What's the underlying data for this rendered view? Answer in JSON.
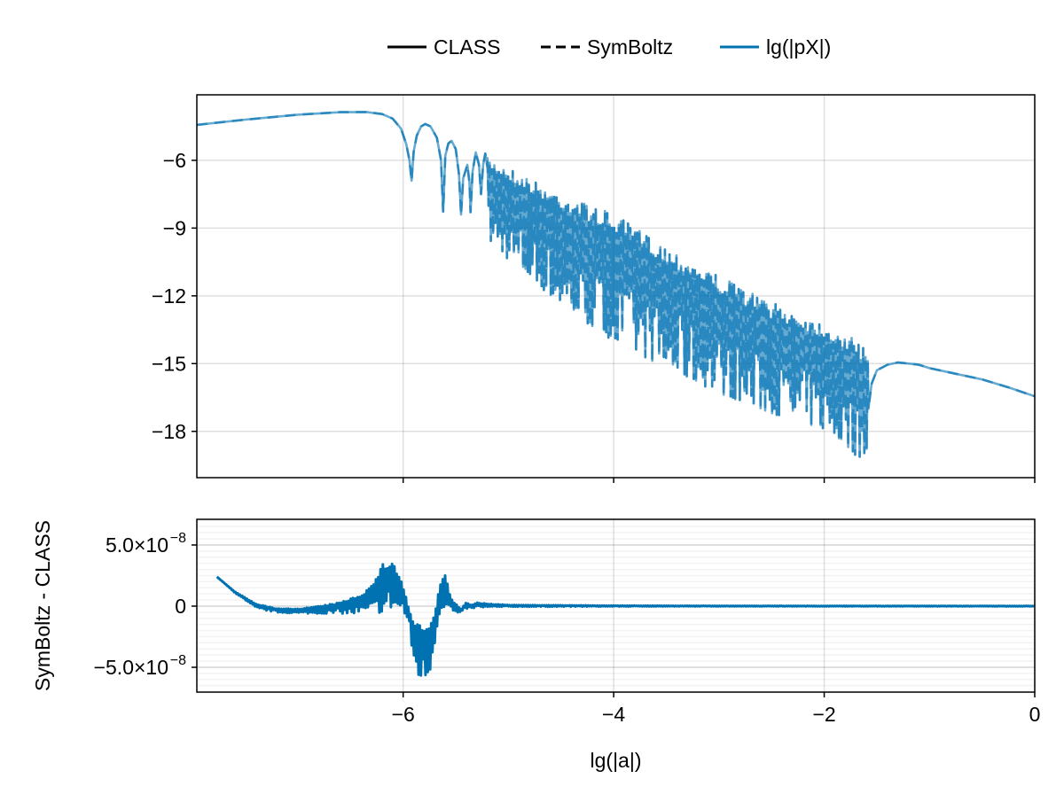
{
  "chart_data": [
    {
      "type": "line",
      "xlabel": "",
      "ylabel": "",
      "xlim": [
        -7.96,
        0
      ],
      "ylim": [
        -20.05,
        -3.1
      ],
      "yticks": [
        -6,
        -9,
        -12,
        -15,
        -18
      ],
      "ytick_labels": [
        "−6",
        "−9",
        "−12",
        "−15",
        "−18"
      ],
      "xticks": [
        -6,
        -4,
        -2,
        0
      ],
      "grid": true,
      "series_color": "#0072B2",
      "resolved_points": [
        [
          -7.96,
          -4.43
        ],
        [
          -7.5,
          -4.2
        ],
        [
          -7.0,
          -3.98
        ],
        [
          -6.6,
          -3.87
        ],
        [
          -6.35,
          -3.86
        ],
        [
          -6.2,
          -3.95
        ],
        [
          -6.1,
          -4.15
        ],
        [
          -6.02,
          -4.6
        ],
        [
          -5.97,
          -5.3
        ],
        [
          -5.94,
          -6.0
        ],
        [
          -5.92,
          -6.9
        ],
        [
          -5.9,
          -5.6
        ],
        [
          -5.87,
          -4.9
        ],
        [
          -5.83,
          -4.5
        ],
        [
          -5.79,
          -4.39
        ],
        [
          -5.74,
          -4.5
        ],
        [
          -5.68,
          -5.0
        ],
        [
          -5.64,
          -6.0
        ],
        [
          -5.62,
          -8.27
        ],
        [
          -5.6,
          -5.8
        ],
        [
          -5.57,
          -5.25
        ],
        [
          -5.54,
          -5.14
        ],
        [
          -5.5,
          -5.5
        ],
        [
          -5.47,
          -6.6
        ],
        [
          -5.45,
          -8.4
        ],
        [
          -5.43,
          -6.8
        ],
        [
          -5.39,
          -6.2
        ],
        [
          -5.37,
          -7.0
        ],
        [
          -5.36,
          -8.3
        ],
        [
          -5.34,
          -6.5
        ],
        [
          -5.31,
          -5.65
        ],
        [
          -5.28,
          -6.2
        ],
        [
          -5.26,
          -7.5
        ],
        [
          -5.24,
          -6.2
        ],
        [
          -5.22,
          -5.7
        ],
        [
          -5.2,
          -6.3
        ]
      ],
      "band": {
        "x": [
          -5.2,
          -5.0,
          -4.6,
          -4.2,
          -4.0,
          -3.5,
          -3.0,
          -2.5,
          -2.0,
          -1.8,
          -1.65,
          -1.58
        ],
        "upper": [
          -5.9,
          -6.3,
          -7.3,
          -8.0,
          -8.4,
          -9.8,
          -11.1,
          -12.3,
          -13.2,
          -13.7,
          -14.1,
          -14.4
        ],
        "lower": [
          -9.5,
          -10.4,
          -12.0,
          -13.4,
          -14.0,
          -15.2,
          -16.3,
          -17.2,
          -17.9,
          -18.6,
          -19.3,
          -18.6
        ]
      },
      "tail_points": [
        [
          -1.58,
          -17.0
        ],
        [
          -1.55,
          -15.9
        ],
        [
          -1.5,
          -15.3
        ],
        [
          -1.4,
          -15.05
        ],
        [
          -1.3,
          -14.95
        ],
        [
          -1.1,
          -15.05
        ],
        [
          -1.0,
          -15.2
        ],
        [
          -0.75,
          -15.45
        ],
        [
          -0.5,
          -15.7
        ],
        [
          -0.25,
          -16.05
        ],
        [
          0,
          -16.45
        ]
      ]
    },
    {
      "type": "line",
      "xlabel": "lg(|a|)",
      "ylabel": "SymBoltz - CLASS",
      "xlim": [
        -7.96,
        0
      ],
      "ylim": [
        -7.03e-08,
        7.1e-08
      ],
      "yticks": [
        5e-08,
        0,
        -5e-08
      ],
      "ytick_labels": [
        "5.0×10",
        "0",
        "−5.0×10"
      ],
      "ytick_exponents": [
        "−8",
        "",
        "−8"
      ],
      "xticks": [
        -6,
        -4,
        -2,
        0
      ],
      "xtick_labels": [
        "−6",
        "−4",
        "−2",
        "0"
      ],
      "grid": true,
      "minor_grid": true,
      "series_color": "#0072B2",
      "band": {
        "x": [
          -7.77,
          -7.6,
          -7.4,
          -7.2,
          -7.0,
          -6.8,
          -6.6,
          -6.4,
          -6.3,
          -6.2,
          -6.1,
          -6.0,
          -5.95,
          -5.9,
          -5.85,
          -5.8,
          -5.75,
          -5.7,
          -5.65,
          -5.6,
          -5.55,
          -5.5,
          -5.45,
          -5.4,
          -5.35,
          -5.3,
          -5.2,
          -5.0,
          -4.0,
          -3.0,
          0
        ],
        "upper": [
          2.4e-08,
          1.2e-08,
          2e-09,
          -2e-09,
          -2e-09,
          0,
          3e-09,
          1e-08,
          1.7e-08,
          3.4e-08,
          3.8e-08,
          1.7e-08,
          0,
          -1.2e-08,
          -1.5e-08,
          -1.6e-08,
          -1.8e-08,
          -5e-09,
          2e-08,
          2.6e-08,
          8e-09,
          2e-09,
          -2e-09,
          3e-09,
          1e-09,
          3e-09,
          2e-09,
          1e-09,
          5e-10,
          3e-10,
          2e-10
        ],
        "lower": [
          2.4e-08,
          1.1e-08,
          -2e-09,
          -5e-09,
          -6e-09,
          -6e-09,
          -6e-09,
          -6e-09,
          -6e-09,
          -5e-09,
          -1e-09,
          -3e-09,
          -1.5e-08,
          -4.5e-08,
          -5.8e-08,
          -6.1e-08,
          -5.5e-08,
          -3e-08,
          -3e-09,
          0,
          -3e-09,
          -6e-09,
          -7e-09,
          -2e-09,
          -2e-09,
          -1e-09,
          -1e-09,
          -5e-10,
          -3e-10,
          -2e-10,
          -2e-10
        ]
      }
    }
  ],
  "legend": {
    "placement": "top",
    "entries": [
      {
        "label": "CLASS",
        "style": "solid",
        "color": "#000000"
      },
      {
        "label": "SymBoltz",
        "style": "dashed",
        "color": "#000000"
      },
      {
        "label": "lg(|pX|)",
        "style": "solid",
        "color": "#0072B2"
      }
    ]
  }
}
